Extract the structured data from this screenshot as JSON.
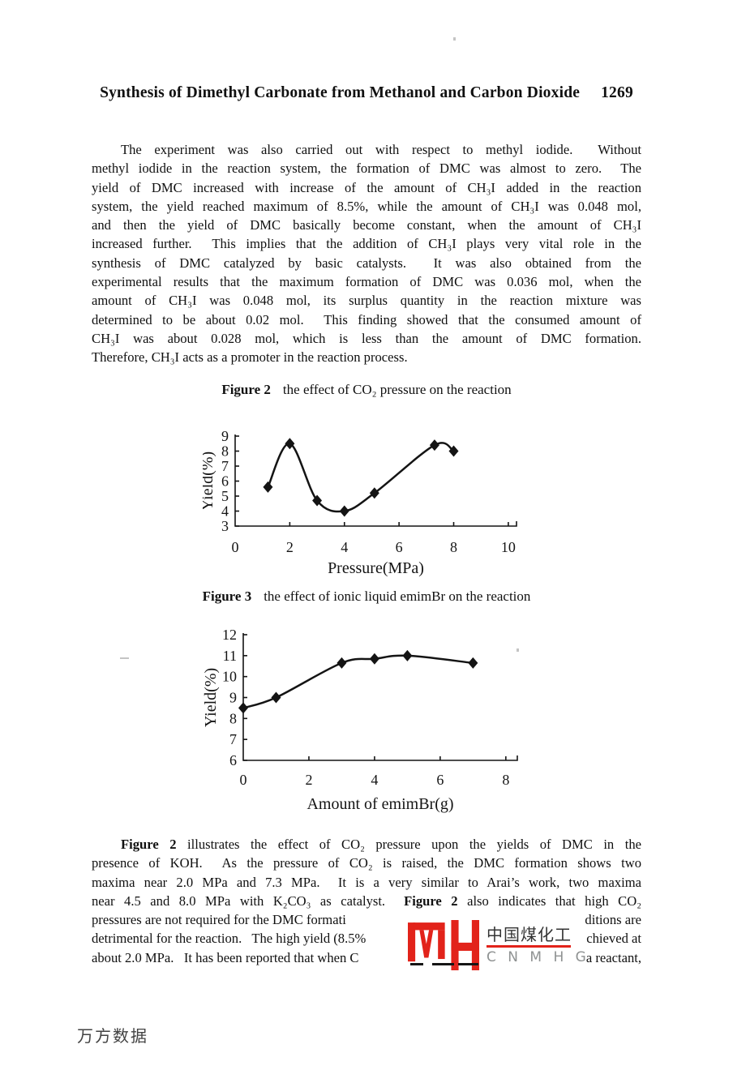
{
  "header": {
    "title": "Synthesis of Dimethyl Carbonate from Methanol and Carbon Dioxide",
    "page_number": "1269"
  },
  "para1": {
    "lines": [
      "The experiment was also carried out with respect to methyl iodide.  Without",
      "methyl iodide in the reaction system, the formation of DMC was almost to zero.  The",
      "yield of DMC increased with increase of the amount of CH₃I added in the reaction",
      "system, the yield reached maximum of 8.5%, while the amount of CH₃I was 0.048 mol,",
      "and then the yield of DMC basically become constant, when the amount of CH₃I",
      "increased further.  This implies that the addition of CH₃I plays very vital role in the",
      "synthesis of DMC catalyzed by basic catalysts.  It was also obtained from the",
      "experimental results that the maximum formation of DMC was 0.036 mol, when the",
      "amount of CH₃I was 0.048 mol, its surplus quantity in the reaction mixture was",
      "determined to be about 0.02 mol.  This finding showed that the consumed amount of",
      "CH₃I was about 0.028 mol, which is less than the amount of DMC formation.",
      "Therefore, CH₃I acts as a promoter in the reaction process."
    ]
  },
  "fig2": {
    "label": "Figure 2",
    "caption": "the effect of CO₂ pressure on the reaction"
  },
  "fig3": {
    "label": "Figure 3",
    "caption": "the effect of ionic liquid emimBr on the reaction"
  },
  "chart_data": [
    {
      "type": "line",
      "figure": "Figure 2",
      "title": "",
      "xlabel": "Pressure(MPa)",
      "ylabel": "Yield(%)",
      "x": [
        1.2,
        2.0,
        3.0,
        4.0,
        5.1,
        7.3,
        8.0
      ],
      "y": [
        5.6,
        8.5,
        4.7,
        4.0,
        5.2,
        8.4,
        8.0
      ],
      "xticks": [
        0,
        2,
        4,
        6,
        8,
        10
      ],
      "yticks": [
        3,
        4,
        5,
        6,
        7,
        8,
        9
      ],
      "xlim": [
        0,
        10.3
      ],
      "ylim": [
        3,
        9
      ],
      "marker": "diamond",
      "grid": false,
      "color": "#141414"
    },
    {
      "type": "line",
      "figure": "Figure 3",
      "title": "",
      "xlabel": "Amount of emimBr(g)",
      "ylabel": "Yield(%)",
      "x": [
        0,
        1,
        3,
        4,
        5,
        7
      ],
      "y": [
        8.5,
        9.0,
        10.65,
        10.85,
        11.0,
        10.65
      ],
      "xticks": [
        0,
        2,
        4,
        6,
        8
      ],
      "yticks": [
        6,
        7,
        8,
        9,
        10,
        11,
        12
      ],
      "xlim": [
        0,
        8.35
      ],
      "ylim": [
        6,
        12
      ],
      "marker": "diamond",
      "grid": false,
      "color": "#141414"
    }
  ],
  "para2": {
    "line1_bold": "Figure 2",
    "line1_rest": " illustrates the effect of CO₂ pressure upon the yields of DMC in the",
    "line2": "presence of KOH.  As the pressure of CO₂ is raised, the DMC formation shows two",
    "line3": "maxima near 2.0 MPa and 7.3 MPa.  It is a very similar to Arai’s work, two maxima",
    "line4_pre": "near 4.5 and 8.0 MPa with K₂CO₃ as catalyst.  ",
    "line4_bold": "Figure 2",
    "line4_post": " also indicates that high CO₂",
    "line5_left": "pressures are not required for the DMC formati",
    "line5_right": "ditions are",
    "line6_left": "detrimental for the reaction.   The high yield (8.5%",
    "line6_right": "chieved at",
    "line7_left": "about 2.0 MPa.   It has been reported that when C",
    "line7_right": "a reactant,"
  },
  "watermark": {
    "chinese": "中国煤化工",
    "english": "C N M H G",
    "logo_color": "#e2231a"
  },
  "footer": {
    "wanfang": "万方数据"
  }
}
